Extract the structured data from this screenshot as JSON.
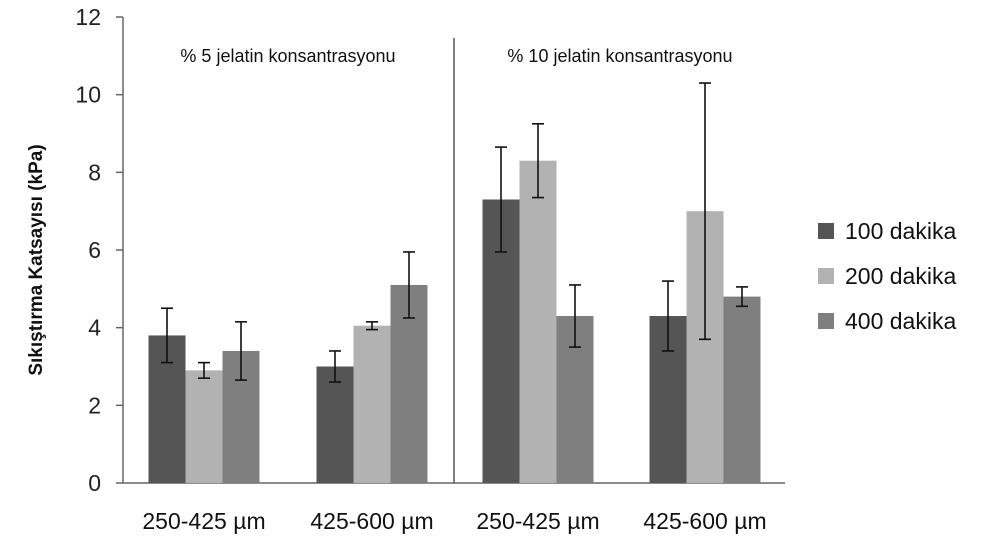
{
  "chart_data": {
    "type": "bar",
    "ylabel": "Sıkıştırma Katsayısı  (kPa)",
    "xlabel": "",
    "ylim": [
      0,
      12
    ],
    "yticks": [
      0,
      2,
      4,
      6,
      8,
      10,
      12
    ],
    "categories": [
      "250-425  µm",
      "425-600  µm",
      "250-425  µm",
      "425-600  µm"
    ],
    "group_titles": [
      "% 5 jelatin  konsantrasyonu",
      "% 10 jelatin  konsantrasyonu"
    ],
    "legend_position": "right",
    "grid": false,
    "series": [
      {
        "name": "100 dakika",
        "color": "#555555",
        "values": [
          3.8,
          3.0,
          7.3,
          4.3
        ],
        "errors": [
          0.7,
          0.4,
          1.35,
          0.9
        ]
      },
      {
        "name": "200 dakika",
        "color": "#b2b2b2",
        "values": [
          2.9,
          4.05,
          8.3,
          7.0
        ],
        "errors": [
          0.2,
          0.1,
          0.95,
          3.3
        ]
      },
      {
        "name": "400 dakika",
        "color": "#7f7f7f",
        "values": [
          3.4,
          5.1,
          4.3,
          4.8
        ],
        "errors": [
          0.75,
          0.85,
          0.8,
          0.25
        ]
      }
    ]
  }
}
